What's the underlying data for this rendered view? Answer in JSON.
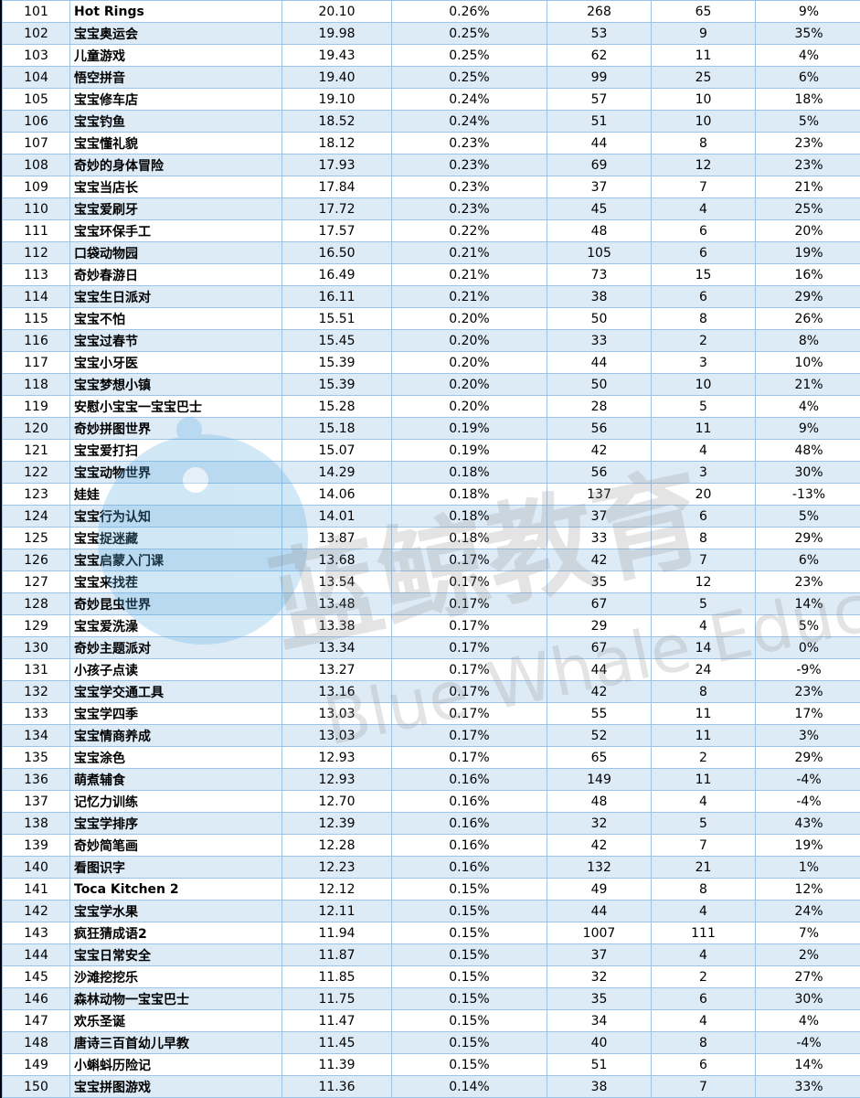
{
  "watermark": {
    "cn": "蓝鲸教育",
    "en": "Blue Whale Education",
    "color": "#5aaee0"
  },
  "colors": {
    "grid": "#9dc3e6",
    "stripe": "#ddebf7"
  },
  "rows": [
    [
      "101",
      "Hot Rings",
      "20.10",
      "0.26%",
      "268",
      "65",
      "9%"
    ],
    [
      "102",
      "宝宝奥运会",
      "19.98",
      "0.25%",
      "53",
      "9",
      "35%"
    ],
    [
      "103",
      "儿童游戏",
      "19.43",
      "0.25%",
      "62",
      "11",
      "4%"
    ],
    [
      "104",
      "悟空拼音",
      "19.40",
      "0.25%",
      "99",
      "25",
      "6%"
    ],
    [
      "105",
      "宝宝修车店",
      "19.10",
      "0.24%",
      "57",
      "10",
      "18%"
    ],
    [
      "106",
      "宝宝钓鱼",
      "18.52",
      "0.24%",
      "51",
      "10",
      "5%"
    ],
    [
      "107",
      "宝宝懂礼貌",
      "18.12",
      "0.23%",
      "44",
      "8",
      "23%"
    ],
    [
      "108",
      "奇妙的身体冒险",
      "17.93",
      "0.23%",
      "69",
      "12",
      "23%"
    ],
    [
      "109",
      "宝宝当店长",
      "17.84",
      "0.23%",
      "37",
      "7",
      "21%"
    ],
    [
      "110",
      "宝宝爱刷牙",
      "17.72",
      "0.23%",
      "45",
      "4",
      "25%"
    ],
    [
      "111",
      "宝宝环保手工",
      "17.57",
      "0.22%",
      "48",
      "6",
      "20%"
    ],
    [
      "112",
      "口袋动物园",
      "16.50",
      "0.21%",
      "105",
      "6",
      "19%"
    ],
    [
      "113",
      "奇妙春游日",
      "16.49",
      "0.21%",
      "73",
      "15",
      "16%"
    ],
    [
      "114",
      "宝宝生日派对",
      "16.11",
      "0.21%",
      "38",
      "6",
      "29%"
    ],
    [
      "115",
      "宝宝不怕",
      "15.51",
      "0.20%",
      "50",
      "8",
      "26%"
    ],
    [
      "116",
      "宝宝过春节",
      "15.45",
      "0.20%",
      "33",
      "2",
      "8%"
    ],
    [
      "117",
      "宝宝小牙医",
      "15.39",
      "0.20%",
      "44",
      "3",
      "10%"
    ],
    [
      "118",
      "宝宝梦想小镇",
      "15.39",
      "0.20%",
      "50",
      "10",
      "21%"
    ],
    [
      "119",
      "安慰小宝宝一宝宝巴士",
      "15.28",
      "0.20%",
      "28",
      "5",
      "4%"
    ],
    [
      "120",
      "奇妙拼图世界",
      "15.18",
      "0.19%",
      "56",
      "11",
      "9%"
    ],
    [
      "121",
      "宝宝爱打扫",
      "15.07",
      "0.19%",
      "42",
      "4",
      "48%"
    ],
    [
      "122",
      "宝宝动物世界",
      "14.29",
      "0.18%",
      "56",
      "3",
      "30%"
    ],
    [
      "123",
      "娃娃",
      "14.06",
      "0.18%",
      "137",
      "20",
      "-13%"
    ],
    [
      "124",
      "宝宝行为认知",
      "14.01",
      "0.18%",
      "37",
      "6",
      "5%"
    ],
    [
      "125",
      "宝宝捉迷藏",
      "13.87",
      "0.18%",
      "33",
      "8",
      "29%"
    ],
    [
      "126",
      "宝宝启蒙入门课",
      "13.68",
      "0.17%",
      "42",
      "7",
      "6%"
    ],
    [
      "127",
      "宝宝来找茬",
      "13.54",
      "0.17%",
      "35",
      "12",
      "23%"
    ],
    [
      "128",
      "奇妙昆虫世界",
      "13.48",
      "0.17%",
      "67",
      "5",
      "14%"
    ],
    [
      "129",
      "宝宝爱洗澡",
      "13.38",
      "0.17%",
      "29",
      "4",
      "5%"
    ],
    [
      "130",
      "奇妙主题派对",
      "13.34",
      "0.17%",
      "67",
      "14",
      "0%"
    ],
    [
      "131",
      "小孩子点读",
      "13.27",
      "0.17%",
      "44",
      "24",
      "-9%"
    ],
    [
      "132",
      "宝宝学交通工具",
      "13.16",
      "0.17%",
      "42",
      "8",
      "23%"
    ],
    [
      "133",
      "宝宝学四季",
      "13.03",
      "0.17%",
      "55",
      "11",
      "17%"
    ],
    [
      "134",
      "宝宝情商养成",
      "13.03",
      "0.17%",
      "52",
      "11",
      "3%"
    ],
    [
      "135",
      "宝宝涂色",
      "12.93",
      "0.17%",
      "65",
      "2",
      "29%"
    ],
    [
      "136",
      "萌煮辅食",
      "12.93",
      "0.16%",
      "149",
      "11",
      "-4%"
    ],
    [
      "137",
      "记忆力训练",
      "12.70",
      "0.16%",
      "48",
      "4",
      "-4%"
    ],
    [
      "138",
      "宝宝学排序",
      "12.39",
      "0.16%",
      "32",
      "5",
      "43%"
    ],
    [
      "139",
      "奇妙简笔画",
      "12.28",
      "0.16%",
      "42",
      "7",
      "19%"
    ],
    [
      "140",
      "看图识字",
      "12.23",
      "0.16%",
      "132",
      "21",
      "1%"
    ],
    [
      "141",
      "Toca Kitchen 2",
      "12.12",
      "0.15%",
      "49",
      "8",
      "12%"
    ],
    [
      "142",
      "宝宝学水果",
      "12.11",
      "0.15%",
      "44",
      "4",
      "24%"
    ],
    [
      "143",
      "疯狂猜成语2",
      "11.94",
      "0.15%",
      "1007",
      "111",
      "7%"
    ],
    [
      "144",
      "宝宝日常安全",
      "11.87",
      "0.15%",
      "37",
      "4",
      "2%"
    ],
    [
      "145",
      "沙滩挖挖乐",
      "11.85",
      "0.15%",
      "32",
      "2",
      "27%"
    ],
    [
      "146",
      "森林动物一宝宝巴士",
      "11.75",
      "0.15%",
      "35",
      "6",
      "30%"
    ],
    [
      "147",
      "欢乐圣诞",
      "11.47",
      "0.15%",
      "34",
      "4",
      "4%"
    ],
    [
      "148",
      "唐诗三百首幼儿早教",
      "11.45",
      "0.15%",
      "40",
      "8",
      "-4%"
    ],
    [
      "149",
      "小蝌蚪历险记",
      "11.39",
      "0.15%",
      "51",
      "6",
      "14%"
    ],
    [
      "150",
      "宝宝拼图游戏",
      "11.36",
      "0.14%",
      "38",
      "7",
      "33%"
    ]
  ]
}
